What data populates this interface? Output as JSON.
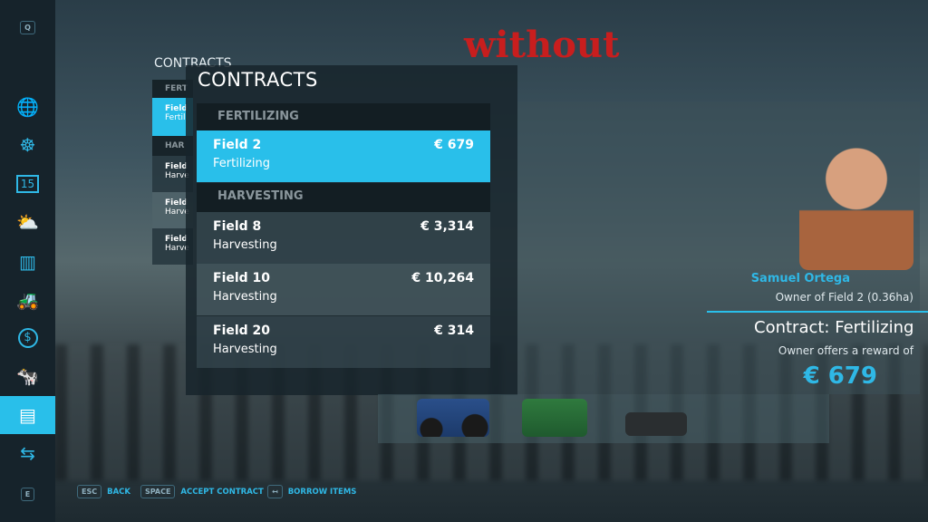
{
  "watermark": "without",
  "sidebar": {
    "top_key": "Q",
    "bottom_key": "E",
    "items": [
      {
        "icon": "globe-icon",
        "glyph": "🌐"
      },
      {
        "icon": "steering-wheel-icon",
        "glyph": "☸"
      },
      {
        "icon": "calendar-icon",
        "glyph": "15"
      },
      {
        "icon": "weather-icon",
        "glyph": "⛅"
      },
      {
        "icon": "statistics-icon",
        "glyph": "▥"
      },
      {
        "icon": "tractor-icon",
        "glyph": "🚜"
      },
      {
        "icon": "finance-icon",
        "glyph": "$"
      },
      {
        "icon": "animals-icon",
        "glyph": "🐄"
      },
      {
        "icon": "contracts-icon",
        "glyph": "▤",
        "active": true
      },
      {
        "icon": "production-icon",
        "glyph": "⇆"
      }
    ]
  },
  "ghost": {
    "title": "CONTRACTS",
    "rows": [
      [
        "FERT",
        ""
      ],
      [
        "Field",
        "Fertil"
      ],
      [
        "HAR",
        ""
      ],
      [
        "Field",
        "Harve"
      ],
      [
        "Field",
        "Harve"
      ],
      [
        "Field",
        "Harve"
      ]
    ]
  },
  "main": {
    "title": "CONTRACTS",
    "groups": [
      {
        "header": "FERTILIZING"
      },
      {
        "header": "HARVESTING"
      }
    ],
    "contracts": [
      {
        "field": "Field 2",
        "type": "Fertilizing",
        "reward": "€ 679"
      },
      {
        "field": "Field 8",
        "type": "Harvesting",
        "reward": "€ 3,314"
      },
      {
        "field": "Field 10",
        "type": "Harvesting",
        "reward": "€ 10,264"
      },
      {
        "field": "Field 20",
        "type": "Harvesting",
        "reward": "€ 314"
      }
    ]
  },
  "details": {
    "owner_name": "Samuel Ortega",
    "owner_info": "Owner of Field 2 (0.36ha)",
    "contract_title": "Contract: Fertilizing",
    "reward_label": "Owner offers a reward of",
    "reward": "€ 679",
    "name_color": "#2fb8e6"
  },
  "equipment": [
    "tractor",
    "fertilizer-spreader",
    "weight"
  ],
  "footer": [
    {
      "key": "ESC",
      "label": "BACK"
    },
    {
      "key": "SPACE",
      "label": "ACCEPT CONTRACT"
    },
    {
      "key": "↤",
      "label": "BORROW ITEMS"
    }
  ],
  "accent": "#29bfea"
}
